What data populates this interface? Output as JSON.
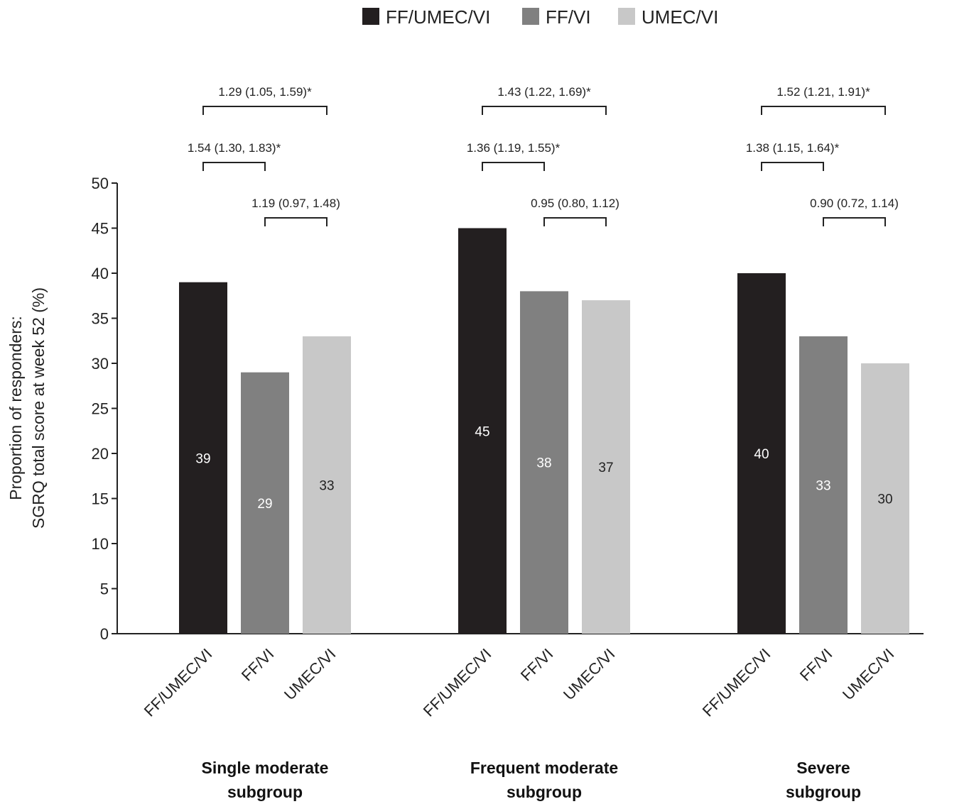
{
  "chart_data": {
    "type": "bar",
    "ylabel_lines": [
      "Proportion of responders:",
      "SGRQ total score at week 52 (%)"
    ],
    "ylim": [
      0,
      50
    ],
    "yticks": [
      0,
      5,
      10,
      15,
      20,
      25,
      30,
      35,
      40,
      45,
      50
    ],
    "legend_position": "top-center",
    "series": [
      {
        "name": "FF/UMEC/VI",
        "color": "#231f20",
        "label_color": "#ffffff"
      },
      {
        "name": "FF/VI",
        "color": "#808080",
        "label_color": "#ffffff"
      },
      {
        "name": "UMEC/VI",
        "color": "#c8c8c8",
        "label_color": "#222222"
      }
    ],
    "groups": [
      {
        "label_lines": [
          "Single moderate",
          "subgroup"
        ],
        "categories": [
          "FF/UMEC/VI",
          "FF/VI",
          "UMEC/VI"
        ],
        "values": [
          39,
          29,
          33
        ],
        "value_labels": [
          "39",
          "29",
          "33"
        ],
        "comparisons": [
          {
            "from": 0,
            "to": 2,
            "text": "1.29 (1.05, 1.59)*"
          },
          {
            "from": 0,
            "to": 1,
            "text": "1.54 (1.30, 1.83)*"
          },
          {
            "from": 1,
            "to": 2,
            "text": "1.19 (0.97, 1.48)"
          }
        ]
      },
      {
        "label_lines": [
          "Frequent moderate",
          "subgroup"
        ],
        "categories": [
          "FF/UMEC/VI",
          "FF/VI",
          "UMEC/VI"
        ],
        "values": [
          45,
          38,
          37
        ],
        "value_labels": [
          "45",
          "38",
          "37"
        ],
        "comparisons": [
          {
            "from": 0,
            "to": 2,
            "text": "1.43 (1.22, 1.69)*"
          },
          {
            "from": 0,
            "to": 1,
            "text": "1.36 (1.19, 1.55)*"
          },
          {
            "from": 1,
            "to": 2,
            "text": "0.95 (0.80, 1.12)"
          }
        ]
      },
      {
        "label_lines": [
          "Severe",
          "subgroup"
        ],
        "categories": [
          "FF/UMEC/VI",
          "FF/VI",
          "UMEC/VI"
        ],
        "values": [
          40,
          33,
          30
        ],
        "value_labels": [
          "40",
          "33",
          "30"
        ],
        "comparisons": [
          {
            "from": 0,
            "to": 2,
            "text": "1.52 (1.21, 1.91)*"
          },
          {
            "from": 0,
            "to": 1,
            "text": "1.38 (1.15, 1.64)*"
          },
          {
            "from": 1,
            "to": 2,
            "text": "0.90 (0.72, 1.14)"
          }
        ]
      }
    ]
  }
}
